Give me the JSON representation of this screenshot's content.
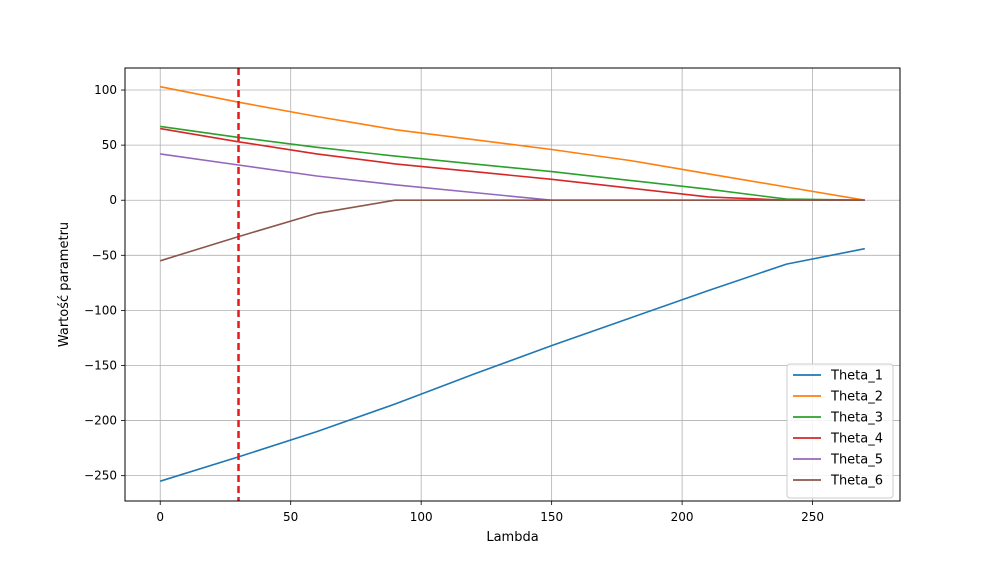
{
  "chart_data": {
    "type": "line",
    "title": "",
    "xlabel": "Lambda",
    "ylabel": "Wartość parametru",
    "xlim": [
      -13.5,
      283.5
    ],
    "ylim": [
      -273,
      120
    ],
    "xticks": [
      0,
      50,
      100,
      150,
      200,
      250
    ],
    "yticks": [
      100,
      50,
      0,
      -50,
      -100,
      -150,
      -200,
      -250
    ],
    "xtick_labels": [
      "0",
      "50",
      "100",
      "150",
      "200",
      "250"
    ],
    "ytick_labels": [
      "100",
      "50",
      "0",
      "−50",
      "−100",
      "−150",
      "−200",
      "−250"
    ],
    "grid": true,
    "legend_position": "lower-right",
    "vline": {
      "x": 30,
      "color": "#e41a1c",
      "style": "dashed"
    },
    "x": [
      0,
      30,
      60,
      90,
      120,
      150,
      180,
      210,
      240,
      270
    ],
    "series": [
      {
        "name": "Theta_1",
        "color": "#1f77b4",
        "values": [
          -255,
          -233,
          -210,
          -185,
          -158,
          -132,
          -107,
          -82,
          -58,
          -44
        ]
      },
      {
        "name": "Theta_2",
        "color": "#ff7f0e",
        "values": [
          103,
          89,
          76,
          64,
          55,
          46,
          36,
          24,
          12,
          0
        ]
      },
      {
        "name": "Theta_3",
        "color": "#2ca02c",
        "values": [
          67,
          57,
          48,
          40,
          33,
          26,
          18,
          10,
          1,
          0
        ]
      },
      {
        "name": "Theta_4",
        "color": "#d62728",
        "values": [
          65,
          53,
          42,
          33,
          26,
          19,
          11,
          3,
          0,
          0
        ]
      },
      {
        "name": "Theta_5",
        "color": "#9467bd",
        "values": [
          42,
          32,
          22,
          14,
          7,
          0,
          0,
          0,
          0,
          0
        ]
      },
      {
        "name": "Theta_6",
        "color": "#8c564b",
        "values": [
          -55,
          -33,
          -12,
          0,
          0,
          0,
          0,
          0,
          0,
          0
        ]
      }
    ]
  }
}
